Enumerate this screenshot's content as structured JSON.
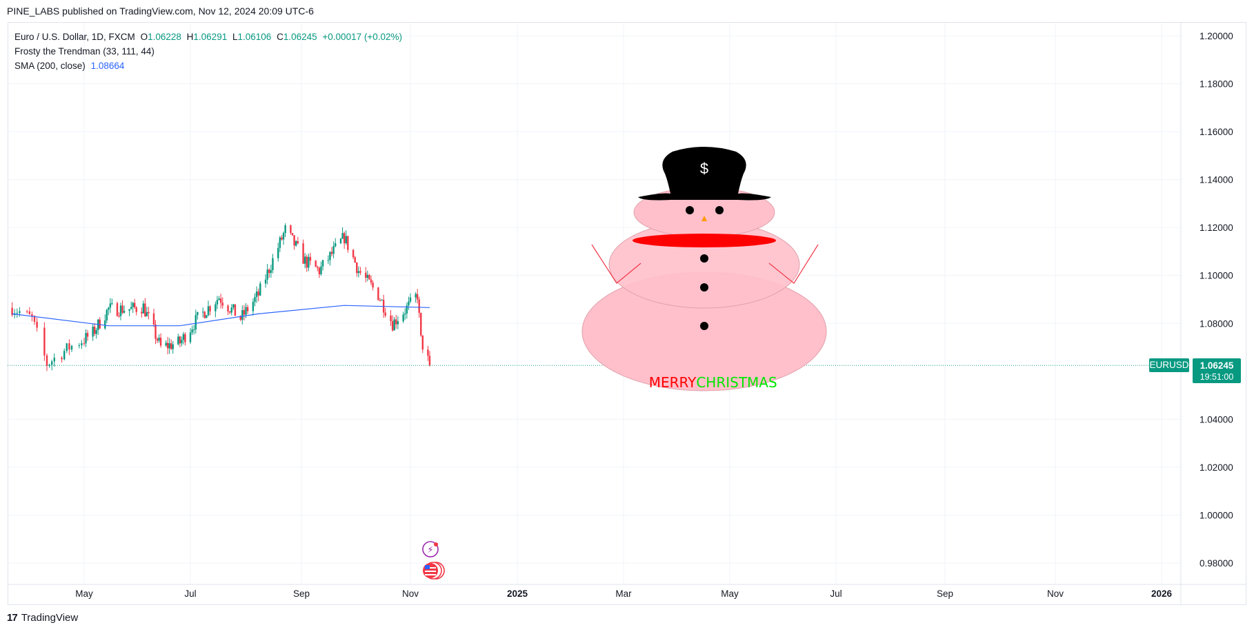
{
  "header": {
    "published": "PINE_LABS published on TradingView.com, Nov 12, 2024 20:09 UTC-6"
  },
  "legend": {
    "symbol": "Euro / U.S. Dollar, 1D, FXCM",
    "o_label": "O",
    "o": "1.06228",
    "h_label": "H",
    "h": "1.06291",
    "l_label": "L",
    "l": "1.06106",
    "c_label": "C",
    "c": "1.06245",
    "change": "+0.00017 (+0.02%)",
    "indicator": "Frosty the Trendman (33, 111, 44)",
    "sma_label": "SMA (200, close)",
    "sma_value": "1.08664"
  },
  "price_tag": {
    "symbol": "EURUSD",
    "price": "1.06245",
    "countdown": "19:51:00"
  },
  "snowman": {
    "hat_symbol": "$",
    "greeting_1": "MERRY",
    "greeting_2": "CHRISTMAS"
  },
  "footer": {
    "brand": "TradingView",
    "logo": "17"
  },
  "colors": {
    "up": "#089981",
    "down": "#f23645",
    "sma": "#2962ff",
    "snow": "#ffc0cb",
    "scarf": "#ff0000",
    "merry": "#ff0000",
    "christmas": "#00e600"
  },
  "chart_data": {
    "type": "candlestick",
    "title": "Euro / U.S. Dollar, 1D, FXCM",
    "y_axis": {
      "position": "right",
      "ylim": [
        0.97,
        1.21
      ],
      "ticks": [
        "1.20000",
        "1.18000",
        "1.16000",
        "1.14000",
        "1.12000",
        "1.10000",
        "1.08000",
        "1.04000",
        "1.02000",
        "1.00000",
        "0.98000"
      ]
    },
    "x_axis": {
      "ticks": [
        "May",
        "Jul",
        "Sep",
        "Nov",
        "2025",
        "Mar",
        "May",
        "Jul",
        "Sep",
        "Nov",
        "2026"
      ],
      "bold_ticks": [
        "2025",
        "2026"
      ]
    },
    "grid": true,
    "close_path": [
      [
        "2024-04-02",
        1.0865
      ],
      [
        "2024-04-10",
        1.082
      ],
      [
        "2024-04-16",
        1.063
      ],
      [
        "2024-04-25",
        1.07
      ],
      [
        "2024-05-06",
        1.076
      ],
      [
        "2024-05-15",
        1.086
      ],
      [
        "2024-05-28",
        1.086
      ],
      [
        "2024-06-04",
        1.087
      ],
      [
        "2024-06-14",
        1.07
      ],
      [
        "2024-06-25",
        1.072
      ],
      [
        "2024-07-05",
        1.082
      ],
      [
        "2024-07-17",
        1.091
      ],
      [
        "2024-07-29",
        1.082
      ],
      [
        "2024-08-08",
        1.092
      ],
      [
        "2024-08-23",
        1.119
      ],
      [
        "2024-09-03",
        1.106
      ],
      [
        "2024-09-11",
        1.102
      ],
      [
        "2024-09-25",
        1.116
      ],
      [
        "2024-10-03",
        1.102
      ],
      [
        "2024-10-14",
        1.092
      ],
      [
        "2024-10-22",
        1.08
      ],
      [
        "2024-11-01",
        1.088
      ],
      [
        "2024-11-05",
        1.092
      ],
      [
        "2024-11-07",
        1.073
      ],
      [
        "2024-11-12",
        1.0625
      ]
    ],
    "series": [
      {
        "name": "SMA (200, close)",
        "color": "#2962ff",
        "points": [
          [
            "2024-04-02",
            1.084
          ],
          [
            "2024-05-15",
            1.079
          ],
          [
            "2024-06-25",
            1.079
          ],
          [
            "2024-08-08",
            1.084
          ],
          [
            "2024-09-25",
            1.0875
          ],
          [
            "2024-11-12",
            1.0866
          ]
        ]
      }
    ],
    "last_price_line": 1.06245
  }
}
